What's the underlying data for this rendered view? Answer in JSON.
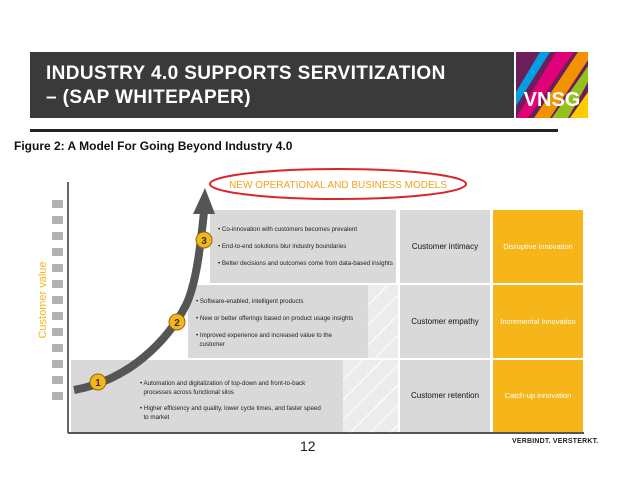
{
  "slide": {
    "title_line1": "INDUSTRY 4.0 SUPPORTS SERVITIZATION",
    "title_line2": "– (SAP WHITEPAPER)",
    "logo_text": "VNSG",
    "figure_title": "Figure 2: A Model For Going Beyond Industry 4.0",
    "page_number": "12",
    "brand_tagline": "VERBINDT. VERSTERKT."
  },
  "diagram": {
    "axis_label": "Customer value",
    "top_banner": "NEW OPERATIONAL AND BUSINESS MODELS",
    "levels": [
      {
        "number": "3",
        "bullets": [
          "• Co-innovation with customers becomes prevalent",
          "• End-to-end solutions blur industry boundaries",
          "• Better decisions and outcomes come from data-based insights"
        ],
        "customer": "Customer intimacy",
        "innovation": "Disruptive innovation"
      },
      {
        "number": "2",
        "bullets": [
          "• Software-enabled, intelligent products",
          "• New or better offerings based on product usage insights",
          "• Improved experience and increased value to the",
          "  customer"
        ],
        "customer": "Customer empathy",
        "innovation": "Incremental innovation"
      },
      {
        "number": "1",
        "bullets": [
          "• Automation and digitalization of top-down and front-to-back",
          "  processes across functional silos",
          "• Higher efficiency and quality, lower cycle times, and faster speed",
          "  to market"
        ],
        "customer": "Customer retention",
        "innovation": "Catch-up innovation"
      }
    ],
    "colors": {
      "accent_yellow": "#f6b61a",
      "banner_red": "#d7262a",
      "banner_text": "#f2a31a",
      "box_gray": "#d9d9d9",
      "arrow_gray": "#555555"
    }
  }
}
